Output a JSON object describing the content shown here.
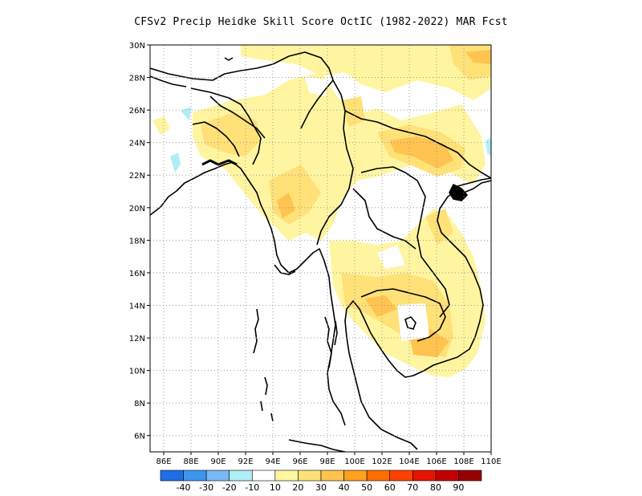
{
  "title": "CFSv2 Precip Heidke Skill Score OctIC (1982-2022) MAR Fcst",
  "map": {
    "lon_range": [
      85,
      110
    ],
    "lat_range": [
      5,
      30
    ],
    "lat_ticks": [
      {
        "value": 30,
        "label": "30N"
      },
      {
        "value": 28,
        "label": "28N"
      },
      {
        "value": 26,
        "label": "26N"
      },
      {
        "value": 24,
        "label": "24N"
      },
      {
        "value": 22,
        "label": "22N"
      },
      {
        "value": 20,
        "label": "20N"
      },
      {
        "value": 18,
        "label": "18N"
      },
      {
        "value": 16,
        "label": "16N"
      },
      {
        "value": 14,
        "label": "14N"
      },
      {
        "value": 12,
        "label": "12N"
      },
      {
        "value": 10,
        "label": "10N"
      },
      {
        "value": 8,
        "label": "8N"
      },
      {
        "value": 6,
        "label": "6N"
      }
    ],
    "lon_ticks": [
      {
        "value": 86,
        "label": "86E"
      },
      {
        "value": 88,
        "label": "88E"
      },
      {
        "value": 90,
        "label": "90E"
      },
      {
        "value": 92,
        "label": "92E"
      },
      {
        "value": 94,
        "label": "94E"
      },
      {
        "value": 96,
        "label": "96E"
      },
      {
        "value": 98,
        "label": "98E"
      },
      {
        "value": 100,
        "label": "100E"
      },
      {
        "value": 102,
        "label": "102E"
      },
      {
        "value": 104,
        "label": "104E"
      },
      {
        "value": 106,
        "label": "106E"
      },
      {
        "value": 108,
        "label": "108E"
      },
      {
        "value": 110,
        "label": "110E"
      }
    ],
    "grid": true
  },
  "colorbar": {
    "colors": [
      "#1e6ee6",
      "#3c96f0",
      "#78b9f5",
      "#afeef5",
      "#ffffff",
      "#fff5a0",
      "#ffe178",
      "#ffc350",
      "#ffa01e",
      "#ff6e00",
      "#ff4100",
      "#e61400",
      "#c30000",
      "#960000"
    ],
    "labels": [
      "-40",
      "-30",
      "-20",
      "-10",
      "10",
      "20",
      "30",
      "40",
      "50",
      "60",
      "70",
      "80",
      "90"
    ]
  },
  "legend_colors": {
    "c10": "#fff5a0",
    "c20": "#ffe178",
    "c30": "#ffc350",
    "c40": "#ffa01e",
    "neg10": "#afeef5"
  }
}
